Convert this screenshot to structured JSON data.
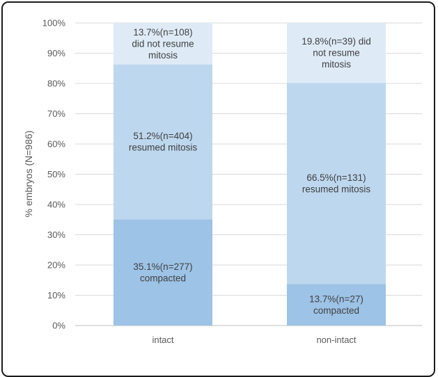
{
  "chart_data": {
    "type": "bar",
    "stacked": true,
    "title": "",
    "xlabel": "",
    "ylabel": "% embryos (N=986)",
    "ylim": [
      0,
      100
    ],
    "y_ticks": [
      "0%",
      "10%",
      "20%",
      "30%",
      "40%",
      "50%",
      "60%",
      "70%",
      "80%",
      "90%",
      "100%"
    ],
    "grid": true,
    "categories": [
      "intact",
      "non-intact"
    ],
    "series": [
      {
        "key": "compacted",
        "values": [
          35.1,
          13.7
        ],
        "color": "#9dc3e6",
        "labels": [
          [
            "35.1%(n=277)",
            "compacted"
          ],
          [
            "13.7%(n=27)",
            "compacted"
          ]
        ]
      },
      {
        "key": "resumed",
        "values": [
          51.2,
          66.5
        ],
        "color": "#bdd7ee",
        "labels": [
          [
            "51.2%(n=404)",
            "resumed mitosis"
          ],
          [
            "66.5%(n=131)",
            "resumed mitosis"
          ]
        ]
      },
      {
        "key": "not_resumed",
        "values": [
          13.7,
          19.8
        ],
        "color": "#deebf7",
        "labels": [
          [
            "13.7%(n=108)",
            "did not resume",
            "mitosis"
          ],
          [
            "19.8%(n=39) did",
            "not resume",
            "mitosis"
          ]
        ]
      }
    ]
  }
}
